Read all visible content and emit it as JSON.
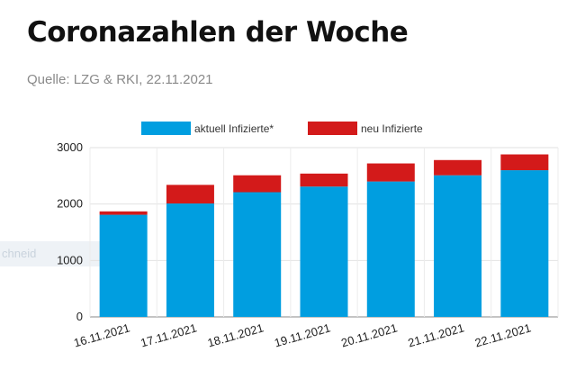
{
  "header": {
    "title": "Coronazahlen der Woche",
    "source": "Quelle: LZG & RKI, 22.11.2021"
  },
  "overlay": {
    "ghost_text": "chneid"
  },
  "chart_data": {
    "type": "bar",
    "stacked": true,
    "categories": [
      "16.11.2021",
      "17.11.2021",
      "18.11.2021",
      "19.11.2021",
      "20.11.2021",
      "21.11.2021",
      "22.11.2021"
    ],
    "series": [
      {
        "name": "aktuell Infizierte*",
        "color": "#009ee0",
        "values": [
          1810,
          2010,
          2210,
          2310,
          2400,
          2510,
          2600
        ]
      },
      {
        "name": "neu Infizierte",
        "color": "#d31a1a",
        "values": [
          60,
          330,
          300,
          230,
          320,
          270,
          280
        ]
      }
    ],
    "yticks": [
      0,
      1000,
      2000,
      3000
    ],
    "ylim": [
      0,
      3000
    ],
    "grid": true,
    "legend_position": "top-center"
  }
}
